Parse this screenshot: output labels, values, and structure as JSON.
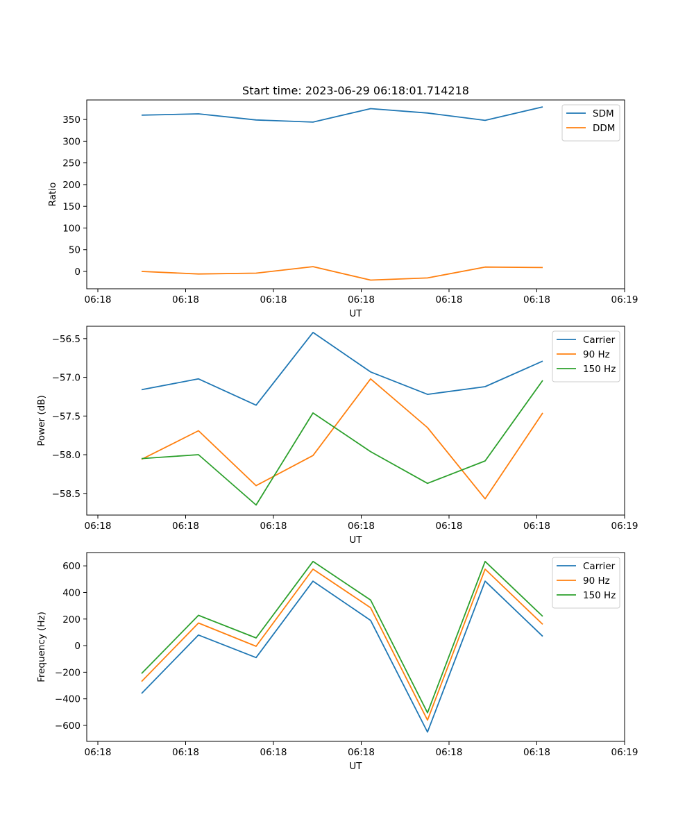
{
  "chart_data": [
    {
      "type": "line",
      "title": "Start time: 2023-06-29 06:18:01.714218",
      "xlabel": "UT",
      "ylabel": "Ratio",
      "x_tick_labels": [
        "06:18",
        "06:18",
        "06:18",
        "06:18",
        "06:18",
        "06:18",
        "06:19"
      ],
      "y_ticks": [
        0,
        50,
        100,
        150,
        200,
        250,
        300,
        350
      ],
      "ylim": [
        -40,
        395
      ],
      "legend_position": "upper right",
      "series": [
        {
          "name": "SDM",
          "color": "#1f77b4",
          "values": [
            360,
            363,
            349,
            344,
            375,
            365,
            348,
            379
          ]
        },
        {
          "name": "DDM",
          "color": "#ff7f0e",
          "values": [
            0,
            -6,
            -4,
            11,
            -20,
            -15,
            10,
            9
          ]
        }
      ]
    },
    {
      "type": "line",
      "title": "",
      "xlabel": "UT",
      "ylabel": "Power (dB)",
      "x_tick_labels": [
        "06:18",
        "06:18",
        "06:18",
        "06:18",
        "06:18",
        "06:18",
        "06:19"
      ],
      "y_ticks": [
        -58.5,
        -58.0,
        -57.5,
        -57.0,
        -56.5
      ],
      "y_tick_labels": [
        "−58.5",
        "−58.0",
        "−57.5",
        "−57.0",
        "−56.5"
      ],
      "ylim": [
        -58.78,
        -56.34
      ],
      "legend_position": "upper right",
      "series": [
        {
          "name": "Carrier",
          "color": "#1f77b4",
          "values": [
            -57.16,
            -57.02,
            -57.36,
            -56.42,
            -56.93,
            -57.22,
            -57.12,
            -56.79
          ]
        },
        {
          "name": "90 Hz",
          "color": "#ff7f0e",
          "values": [
            -58.06,
            -57.69,
            -58.4,
            -58.01,
            -57.02,
            -57.65,
            -58.57,
            -57.46
          ]
        },
        {
          "name": "150 Hz",
          "color": "#2ca02c",
          "values": [
            -58.05,
            -58.0,
            -58.65,
            -57.46,
            -57.96,
            -58.37,
            -58.08,
            -57.04
          ]
        }
      ]
    },
    {
      "type": "line",
      "title": "",
      "xlabel": "UT",
      "ylabel": "Frequency (Hz)",
      "x_tick_labels": [
        "06:18",
        "06:18",
        "06:18",
        "06:18",
        "06:18",
        "06:18",
        "06:19"
      ],
      "y_ticks": [
        -600,
        -400,
        -200,
        0,
        200,
        400,
        600
      ],
      "y_tick_labels": [
        "−600",
        "−400",
        "−200",
        "0",
        "200",
        "400",
        "600"
      ],
      "ylim": [
        -720,
        700
      ],
      "legend_position": "upper right",
      "series": [
        {
          "name": "Carrier",
          "color": "#1f77b4",
          "values": [
            -360,
            80,
            -90,
            485,
            190,
            -650,
            485,
            70
          ]
        },
        {
          "name": "90 Hz",
          "color": "#ff7f0e",
          "values": [
            -270,
            170,
            -5,
            575,
            285,
            -560,
            575,
            160
          ]
        },
        {
          "name": "150 Hz",
          "color": "#2ca02c",
          "values": [
            -210,
            228,
            58,
            633,
            343,
            -505,
            633,
            220
          ]
        }
      ]
    }
  ]
}
